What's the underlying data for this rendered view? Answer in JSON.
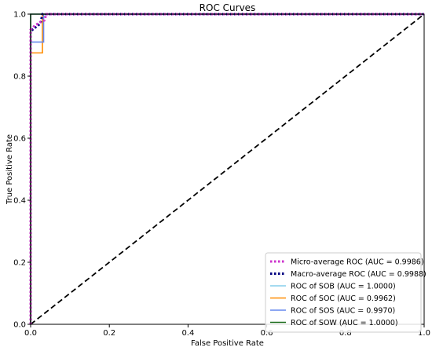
{
  "chart_data": {
    "type": "line",
    "title": "ROC Curves",
    "xlabel": "False Positive Rate",
    "ylabel": "True Positive Rate",
    "xlim": [
      0.0,
      1.0
    ],
    "ylim": [
      0.0,
      1.0
    ],
    "x_ticks": [
      "0.0",
      "0.2",
      "0.4",
      "0.6",
      "0.8",
      "1.0"
    ],
    "y_ticks": [
      "0.0",
      "0.2",
      "0.4",
      "0.6",
      "0.8",
      "1.0"
    ],
    "grid": false,
    "legend_position": "lower right",
    "series": [
      {
        "name": "Micro-average ROC (AUC = 0.9986)",
        "color": "#cc33cc",
        "style": "dotted",
        "x": [
          0.0,
          0.0,
          0.004,
          0.008,
          0.012,
          0.02,
          0.025,
          0.03,
          0.035,
          0.04,
          1.0
        ],
        "y": [
          0.0,
          0.95,
          0.955,
          0.96,
          0.965,
          0.97,
          0.975,
          0.978,
          0.98,
          1.0,
          1.0
        ]
      },
      {
        "name": "Macro-average ROC (AUC = 0.9988)",
        "color": "#000080",
        "style": "dotted",
        "x": [
          0.0,
          0.0,
          0.005,
          0.01,
          0.015,
          0.02,
          0.025,
          0.03,
          1.0
        ],
        "y": [
          0.0,
          0.945,
          0.95,
          0.955,
          0.96,
          0.965,
          0.97,
          1.0,
          1.0
        ]
      },
      {
        "name": "ROC of SOB (AUC = 1.0000)",
        "color": "#87ceeb",
        "style": "solid",
        "x": [
          0.0,
          0.0,
          1.0
        ],
        "y": [
          0.0,
          1.0,
          1.0
        ]
      },
      {
        "name": "ROC of SOC (AUC = 0.9962)",
        "color": "#ff8c00",
        "style": "solid",
        "x": [
          0.0,
          0.0,
          0.03,
          0.03,
          1.0
        ],
        "y": [
          0.0,
          0.875,
          0.875,
          1.0,
          1.0
        ]
      },
      {
        "name": "ROC of SOS (AUC = 0.9970)",
        "color": "#6688ee",
        "style": "solid",
        "x": [
          0.0,
          0.0,
          0.033,
          0.033,
          1.0
        ],
        "y": [
          0.0,
          0.91,
          0.91,
          1.0,
          1.0
        ]
      },
      {
        "name": "ROC of SOW (AUC = 1.0000)",
        "color": "#1a6b1a",
        "style": "solid",
        "x": [
          0.0,
          0.0,
          1.0
        ],
        "y": [
          0.0,
          1.0,
          1.0
        ]
      },
      {
        "color": "#000000",
        "style": "dashed",
        "x": [
          0.0,
          1.0
        ],
        "y": [
          0.0,
          1.0
        ]
      }
    ]
  }
}
